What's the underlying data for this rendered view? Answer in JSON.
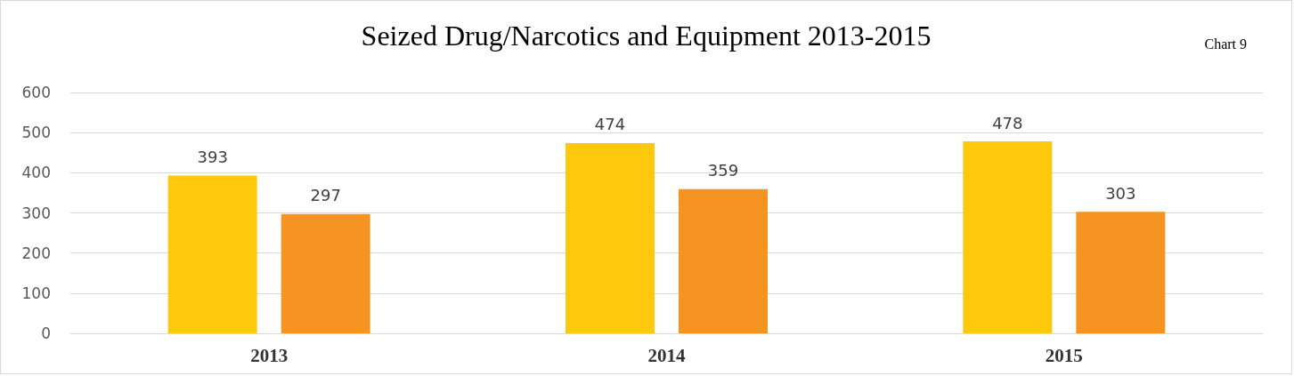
{
  "chart_data": {
    "type": "bar",
    "title": "Seized Drug/Narcotics and Equipment 2013-2015",
    "annotations": [
      "Chart 9"
    ],
    "categories": [
      "2013",
      "2014",
      "2015"
    ],
    "series": [
      {
        "color": "#fec90c",
        "values": [
          393,
          474,
          478
        ]
      },
      {
        "color": "#f69422",
        "values": [
          297,
          359,
          303
        ]
      }
    ],
    "ylim": [
      0,
      600
    ],
    "yticks": [
      0,
      100,
      200,
      300,
      400,
      500,
      600
    ],
    "grid": "y",
    "data_labels": true
  }
}
